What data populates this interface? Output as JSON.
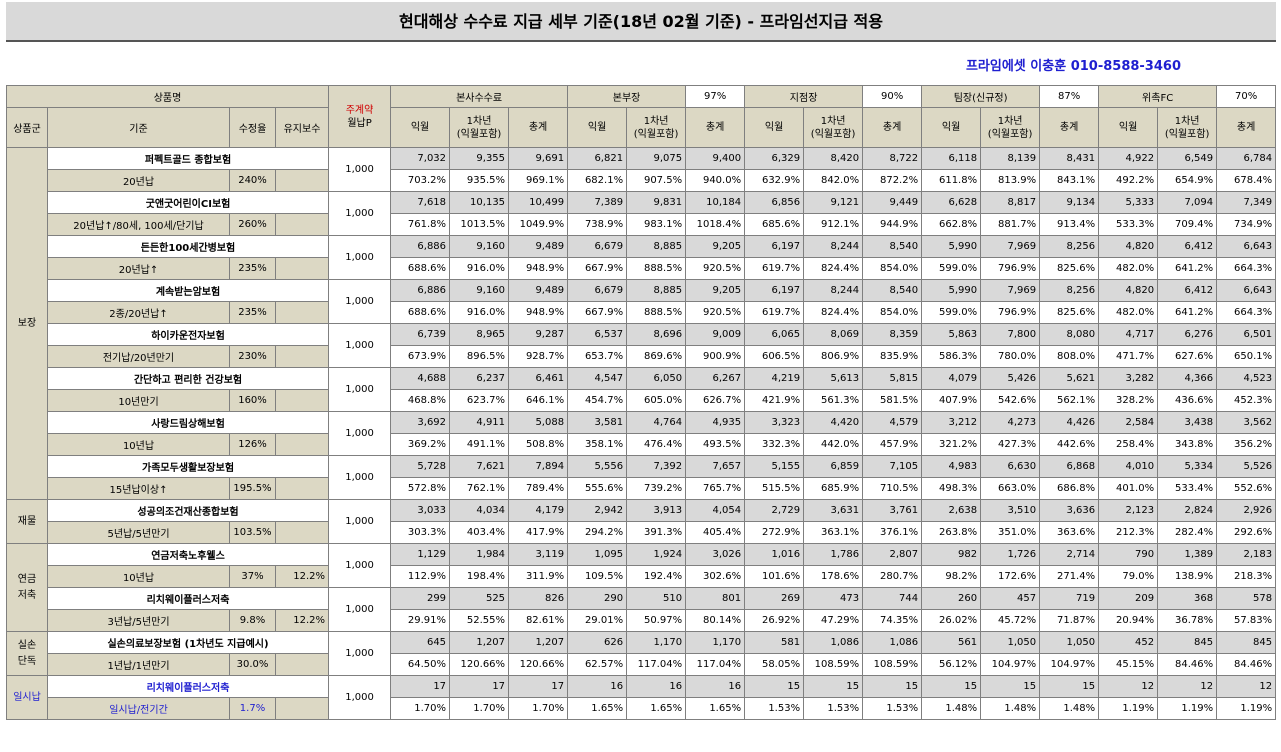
{
  "title": "현대해상 수수료 지급 세부 기준(18년 02월 기준) - 프라임선지급 적용",
  "contact": "프라임에셋 이충훈 010-8588-3460",
  "header": {
    "product_name": "상품명",
    "main_contract": "주계약",
    "monthly_premium": "월납P",
    "groups": [
      {
        "label": "본사수수료",
        "pct": ""
      },
      {
        "label": "본부장",
        "pct": "97%"
      },
      {
        "label": "지점장",
        "pct": "90%"
      },
      {
        "label": "팀장(신규정)",
        "pct": "87%"
      },
      {
        "label": "위촉FC",
        "pct": "70%"
      }
    ],
    "product_group": "상품군",
    "criteria": "기준",
    "correction_rate": "수정율",
    "maintenance_fee": "유지보수",
    "sub": [
      "익월",
      "1차년\n(익월포함)",
      "총계"
    ]
  },
  "categories": [
    {
      "label": "보장",
      "span": 16
    },
    {
      "label": "재물",
      "span": 2
    },
    {
      "label": "연금\n저축",
      "span": 4
    },
    {
      "label": "실손\n단독",
      "span": 2
    },
    {
      "label": "일시납",
      "span": 2,
      "blue": true
    }
  ],
  "products": [
    {
      "name": "퍼펙트골드 종합보험",
      "cond": "20년납",
      "rate": "240%",
      "maint": "",
      "premium": "1,000",
      "values": [
        "7,032",
        "9,355",
        "9,691",
        "6,821",
        "9,075",
        "9,400",
        "6,329",
        "8,420",
        "8,722",
        "6,118",
        "8,139",
        "8,431",
        "4,922",
        "6,549",
        "6,784"
      ],
      "pcts": [
        "703.2%",
        "935.5%",
        "969.1%",
        "682.1%",
        "907.5%",
        "940.0%",
        "632.9%",
        "842.0%",
        "872.2%",
        "611.8%",
        "813.9%",
        "843.1%",
        "492.2%",
        "654.9%",
        "678.4%"
      ]
    },
    {
      "name": "굿앤굿어린이CI보험",
      "cond": "20년납↑/80세, 100세/단기납",
      "rate": "260%",
      "maint": "",
      "premium": "1,000",
      "values": [
        "7,618",
        "10,135",
        "10,499",
        "7,389",
        "9,831",
        "10,184",
        "6,856",
        "9,121",
        "9,449",
        "6,628",
        "8,817",
        "9,134",
        "5,333",
        "7,094",
        "7,349"
      ],
      "pcts": [
        "761.8%",
        "1013.5%",
        "1049.9%",
        "738.9%",
        "983.1%",
        "1018.4%",
        "685.6%",
        "912.1%",
        "944.9%",
        "662.8%",
        "881.7%",
        "913.4%",
        "533.3%",
        "709.4%",
        "734.9%"
      ]
    },
    {
      "name": "든든한100세간병보험",
      "cond": "20년납↑",
      "rate": "235%",
      "maint": "",
      "premium": "1,000",
      "values": [
        "6,886",
        "9,160",
        "9,489",
        "6,679",
        "8,885",
        "9,205",
        "6,197",
        "8,244",
        "8,540",
        "5,990",
        "7,969",
        "8,256",
        "4,820",
        "6,412",
        "6,643"
      ],
      "pcts": [
        "688.6%",
        "916.0%",
        "948.9%",
        "667.9%",
        "888.5%",
        "920.5%",
        "619.7%",
        "824.4%",
        "854.0%",
        "599.0%",
        "796.9%",
        "825.6%",
        "482.0%",
        "641.2%",
        "664.3%"
      ]
    },
    {
      "name": "계속받는암보험",
      "cond": "2종/20년납↑",
      "rate": "235%",
      "maint": "",
      "premium": "1,000",
      "values": [
        "6,886",
        "9,160",
        "9,489",
        "6,679",
        "8,885",
        "9,205",
        "6,197",
        "8,244",
        "8,540",
        "5,990",
        "7,969",
        "8,256",
        "4,820",
        "6,412",
        "6,643"
      ],
      "pcts": [
        "688.6%",
        "916.0%",
        "948.9%",
        "667.9%",
        "888.5%",
        "920.5%",
        "619.7%",
        "824.4%",
        "854.0%",
        "599.0%",
        "796.9%",
        "825.6%",
        "482.0%",
        "641.2%",
        "664.3%"
      ]
    },
    {
      "name": "하이카운전자보험",
      "cond": "전기납/20년만기",
      "rate": "230%",
      "maint": "",
      "premium": "1,000",
      "values": [
        "6,739",
        "8,965",
        "9,287",
        "6,537",
        "8,696",
        "9,009",
        "6,065",
        "8,069",
        "8,359",
        "5,863",
        "7,800",
        "8,080",
        "4,717",
        "6,276",
        "6,501"
      ],
      "pcts": [
        "673.9%",
        "896.5%",
        "928.7%",
        "653.7%",
        "869.6%",
        "900.9%",
        "606.5%",
        "806.9%",
        "835.9%",
        "586.3%",
        "780.0%",
        "808.0%",
        "471.7%",
        "627.6%",
        "650.1%"
      ]
    },
    {
      "name": "간단하고 편리한 건강보험",
      "cond": "10년만기",
      "rate": "160%",
      "maint": "",
      "premium": "1,000",
      "values": [
        "4,688",
        "6,237",
        "6,461",
        "4,547",
        "6,050",
        "6,267",
        "4,219",
        "5,613",
        "5,815",
        "4,079",
        "5,426",
        "5,621",
        "3,282",
        "4,366",
        "4,523"
      ],
      "pcts": [
        "468.8%",
        "623.7%",
        "646.1%",
        "454.7%",
        "605.0%",
        "626.7%",
        "421.9%",
        "561.3%",
        "581.5%",
        "407.9%",
        "542.6%",
        "562.1%",
        "328.2%",
        "436.6%",
        "452.3%"
      ]
    },
    {
      "name": "사랑드림상해보험",
      "cond": "10년납",
      "rate": "126%",
      "maint": "",
      "premium": "1,000",
      "values": [
        "3,692",
        "4,911",
        "5,088",
        "3,581",
        "4,764",
        "4,935",
        "3,323",
        "4,420",
        "4,579",
        "3,212",
        "4,273",
        "4,426",
        "2,584",
        "3,438",
        "3,562"
      ],
      "pcts": [
        "369.2%",
        "491.1%",
        "508.8%",
        "358.1%",
        "476.4%",
        "493.5%",
        "332.3%",
        "442.0%",
        "457.9%",
        "321.2%",
        "427.3%",
        "442.6%",
        "258.4%",
        "343.8%",
        "356.2%"
      ]
    },
    {
      "name": "가족모두생활보장보험",
      "cond": "15년납이상↑",
      "rate": "195.5%",
      "maint": "",
      "premium": "1,000",
      "values": [
        "5,728",
        "7,621",
        "7,894",
        "5,556",
        "7,392",
        "7,657",
        "5,155",
        "6,859",
        "7,105",
        "4,983",
        "6,630",
        "6,868",
        "4,010",
        "5,334",
        "5,526"
      ],
      "pcts": [
        "572.8%",
        "762.1%",
        "789.4%",
        "555.6%",
        "739.2%",
        "765.7%",
        "515.5%",
        "685.9%",
        "710.5%",
        "498.3%",
        "663.0%",
        "686.8%",
        "401.0%",
        "533.4%",
        "552.6%"
      ]
    },
    {
      "name": "성공의조건재산종합보험",
      "cond": "5년납/5년만기",
      "rate": "103.5%",
      "maint": "",
      "premium": "1,000",
      "values": [
        "3,033",
        "4,034",
        "4,179",
        "2,942",
        "3,913",
        "4,054",
        "2,729",
        "3,631",
        "3,761",
        "2,638",
        "3,510",
        "3,636",
        "2,123",
        "2,824",
        "2,926"
      ],
      "pcts": [
        "303.3%",
        "403.4%",
        "417.9%",
        "294.2%",
        "391.3%",
        "405.4%",
        "272.9%",
        "363.1%",
        "376.1%",
        "263.8%",
        "351.0%",
        "363.6%",
        "212.3%",
        "282.4%",
        "292.6%"
      ]
    },
    {
      "name": "연금저축노후웰스",
      "cond": "10년납",
      "rate": "37%",
      "maint": "12.2%",
      "premium": "1,000",
      "values": [
        "1,129",
        "1,984",
        "3,119",
        "1,095",
        "1,924",
        "3,026",
        "1,016",
        "1,786",
        "2,807",
        "982",
        "1,726",
        "2,714",
        "790",
        "1,389",
        "2,183"
      ],
      "pcts": [
        "112.9%",
        "198.4%",
        "311.9%",
        "109.5%",
        "192.4%",
        "302.6%",
        "101.6%",
        "178.6%",
        "280.7%",
        "98.2%",
        "172.6%",
        "271.4%",
        "79.0%",
        "138.9%",
        "218.3%"
      ]
    },
    {
      "name": "리치웨이플러스저축",
      "cond": "3년납/5년만기",
      "rate": "9.8%",
      "maint": "12.2%",
      "premium": "1,000",
      "values": [
        "299",
        "525",
        "826",
        "290",
        "510",
        "801",
        "269",
        "473",
        "744",
        "260",
        "457",
        "719",
        "209",
        "368",
        "578"
      ],
      "pcts": [
        "29.91%",
        "52.55%",
        "82.61%",
        "29.01%",
        "50.97%",
        "80.14%",
        "26.92%",
        "47.29%",
        "74.35%",
        "26.02%",
        "45.72%",
        "71.87%",
        "20.94%",
        "36.78%",
        "57.83%"
      ]
    },
    {
      "name": "실손의료보장보험 (1차년도 지급예시)",
      "cond": "1년납/1년만기",
      "rate": "30.0%",
      "maint": "",
      "premium": "1,000",
      "values": [
        "645",
        "1,207",
        "1,207",
        "626",
        "1,170",
        "1,170",
        "581",
        "1,086",
        "1,086",
        "561",
        "1,050",
        "1,050",
        "452",
        "845",
        "845"
      ],
      "pcts": [
        "64.50%",
        "120.66%",
        "120.66%",
        "62.57%",
        "117.04%",
        "117.04%",
        "58.05%",
        "108.59%",
        "108.59%",
        "56.12%",
        "104.97%",
        "104.97%",
        "45.15%",
        "84.46%",
        "84.46%"
      ]
    },
    {
      "name": "리치웨이플러스저축",
      "cond": "일시납/전기간",
      "rate": "1.7%",
      "maint": "",
      "premium": "1,000",
      "blue": true,
      "values": [
        "17",
        "17",
        "17",
        "16",
        "16",
        "16",
        "15",
        "15",
        "15",
        "15",
        "15",
        "15",
        "12",
        "12",
        "12"
      ],
      "pcts": [
        "1.70%",
        "1.70%",
        "1.70%",
        "1.65%",
        "1.65%",
        "1.65%",
        "1.53%",
        "1.53%",
        "1.53%",
        "1.48%",
        "1.48%",
        "1.48%",
        "1.19%",
        "1.19%",
        "1.19%"
      ]
    }
  ]
}
